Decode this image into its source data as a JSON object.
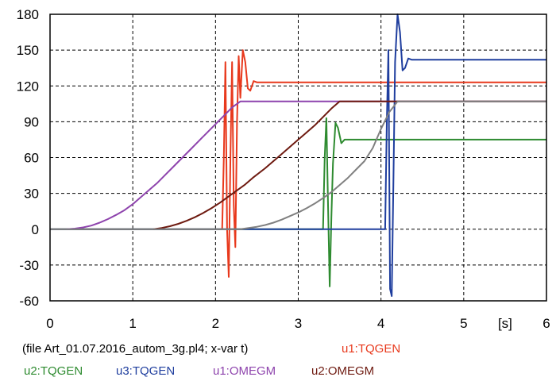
{
  "chart_data": {
    "type": "line",
    "xlim": [
      0,
      6
    ],
    "ylim": [
      -60,
      180
    ],
    "x_ticks": [
      0,
      1,
      2,
      3,
      4,
      5,
      6
    ],
    "y_ticks": [
      -60,
      -30,
      0,
      30,
      60,
      90,
      120,
      150,
      180
    ],
    "x_unit_label": "[s]",
    "grid": true,
    "file_label": "(file Art_01.07.2016_autom_3g.pl4; x-var t)",
    "series": [
      {
        "name": "u1:TQGEN",
        "color": "#e8391d",
        "points": [
          [
            0,
            0
          ],
          [
            2.08,
            0
          ],
          [
            2.1,
            60
          ],
          [
            2.12,
            140
          ],
          [
            2.14,
            0
          ],
          [
            2.16,
            -40
          ],
          [
            2.18,
            60
          ],
          [
            2.2,
            140
          ],
          [
            2.22,
            20
          ],
          [
            2.24,
            -15
          ],
          [
            2.26,
            90
          ],
          [
            2.28,
            145
          ],
          [
            2.3,
            110
          ],
          [
            2.33,
            150
          ],
          [
            2.36,
            140
          ],
          [
            2.39,
            118
          ],
          [
            2.42,
            116
          ],
          [
            2.46,
            124
          ],
          [
            2.5,
            123
          ],
          [
            2.6,
            123
          ],
          [
            6,
            123
          ]
        ]
      },
      {
        "name": "u2:TQGEN",
        "color": "#2e8b30",
        "points": [
          [
            0,
            0
          ],
          [
            3.3,
            0
          ],
          [
            3.32,
            60
          ],
          [
            3.34,
            93
          ],
          [
            3.36,
            20
          ],
          [
            3.38,
            -48
          ],
          [
            3.4,
            10
          ],
          [
            3.42,
            55
          ],
          [
            3.45,
            89
          ],
          [
            3.48,
            85
          ],
          [
            3.52,
            72
          ],
          [
            3.56,
            75
          ],
          [
            3.65,
            75
          ],
          [
            6,
            75
          ]
        ]
      },
      {
        "name": "u3:TQGEN",
        "color": "#1f3e9e",
        "points": [
          [
            0,
            0
          ],
          [
            4.05,
            0
          ],
          [
            4.07,
            90
          ],
          [
            4.09,
            150
          ],
          [
            4.11,
            -50
          ],
          [
            4.13,
            -56
          ],
          [
            4.15,
            40
          ],
          [
            4.17,
            140
          ],
          [
            4.2,
            180
          ],
          [
            4.23,
            165
          ],
          [
            4.26,
            133
          ],
          [
            4.29,
            135
          ],
          [
            4.33,
            143
          ],
          [
            4.37,
            142
          ],
          [
            4.5,
            142
          ],
          [
            6,
            142
          ]
        ]
      },
      {
        "name": "u1:OMEGM",
        "color": "#8e44ad",
        "points": [
          [
            0.2,
            0
          ],
          [
            0.3,
            0.5
          ],
          [
            0.4,
            1.5
          ],
          [
            0.5,
            3
          ],
          [
            0.6,
            5.5
          ],
          [
            0.7,
            8.5
          ],
          [
            0.8,
            12
          ],
          [
            0.9,
            16
          ],
          [
            1.0,
            21
          ],
          [
            1.1,
            27
          ],
          [
            1.2,
            33
          ],
          [
            1.3,
            39
          ],
          [
            1.4,
            46
          ],
          [
            1.5,
            53
          ],
          [
            1.6,
            60
          ],
          [
            1.7,
            67
          ],
          [
            1.8,
            74
          ],
          [
            1.9,
            81
          ],
          [
            2.0,
            88
          ],
          [
            2.1,
            95
          ],
          [
            2.2,
            102
          ],
          [
            2.3,
            107
          ],
          [
            6,
            107
          ]
        ]
      },
      {
        "name": "u2:OMEGM",
        "color": "#6e1a10",
        "points": [
          [
            1.25,
            0
          ],
          [
            1.35,
            1
          ],
          [
            1.45,
            2.5
          ],
          [
            1.55,
            4.5
          ],
          [
            1.65,
            7
          ],
          [
            1.75,
            10
          ],
          [
            1.85,
            13.5
          ],
          [
            1.95,
            17.5
          ],
          [
            2.05,
            22
          ],
          [
            2.15,
            27
          ],
          [
            2.25,
            32
          ],
          [
            2.35,
            37
          ],
          [
            2.45,
            43
          ],
          [
            2.6,
            51
          ],
          [
            2.8,
            63
          ],
          [
            3.0,
            75
          ],
          [
            3.2,
            87
          ],
          [
            3.4,
            101
          ],
          [
            3.5,
            107
          ],
          [
            6,
            107
          ]
        ]
      },
      {
        "name": "u2:OMEGM",
        "color": "#808080",
        "points": [
          [
            0,
            0
          ],
          [
            2.3,
            0
          ],
          [
            2.4,
            1
          ],
          [
            2.5,
            2
          ],
          [
            2.6,
            3.5
          ],
          [
            2.7,
            5.5
          ],
          [
            2.8,
            8
          ],
          [
            2.9,
            11
          ],
          [
            3.0,
            14
          ],
          [
            3.1,
            17.5
          ],
          [
            3.2,
            21.5
          ],
          [
            3.3,
            26
          ],
          [
            3.4,
            31
          ],
          [
            3.5,
            37
          ],
          [
            3.6,
            43
          ],
          [
            3.7,
            50
          ],
          [
            3.8,
            57
          ],
          [
            3.9,
            68
          ],
          [
            4.0,
            84
          ],
          [
            4.1,
            98
          ],
          [
            4.2,
            107
          ],
          [
            6,
            107
          ]
        ]
      }
    ],
    "legend": [
      {
        "label": "u1:TQGEN",
        "color": "#e8391d"
      },
      {
        "label": "u2:TQGEN",
        "color": "#2e8b30"
      },
      {
        "label": "u3:TQGEN",
        "color": "#1f3e9e"
      },
      {
        "label": "u1:OMEGM",
        "color": "#8e44ad"
      },
      {
        "label": "u2:OMEGM",
        "color": "#6e1a10"
      }
    ]
  }
}
